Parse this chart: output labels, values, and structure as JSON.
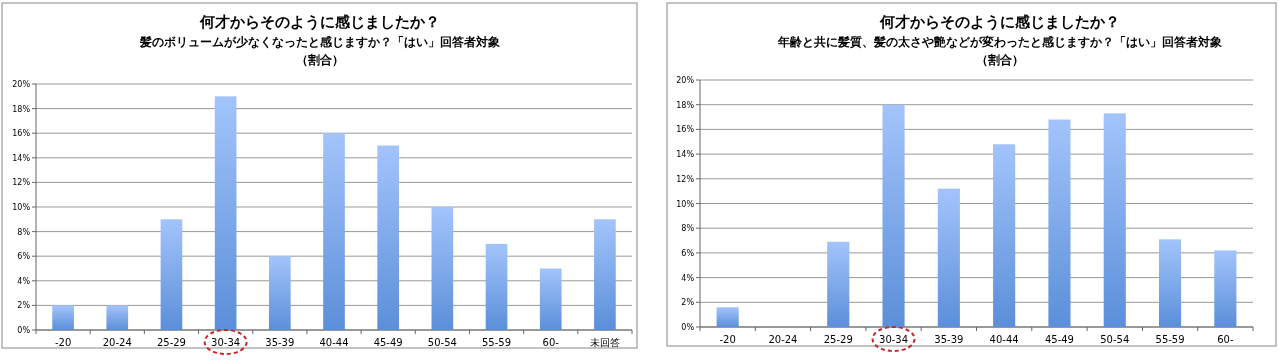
{
  "chart_data": [
    {
      "type": "bar",
      "title": "何才からそのように感じましたか？",
      "subtitle": "髪のボリュームが少なくなったと感じますか？「はい」回答者対象",
      "annotations": [
        "（割合）"
      ],
      "categories": [
        "-20",
        "20-24",
        "25-29",
        "30-34",
        "35-39",
        "40-44",
        "45-49",
        "50-54",
        "55-59",
        "60-",
        "未回答"
      ],
      "values": [
        2,
        2,
        9,
        19,
        6,
        16,
        15,
        10,
        7,
        5,
        9
      ],
      "color": "#5b8fd9",
      "ylim": [
        0,
        20
      ],
      "yticks": [
        {
          "value": 0,
          "label": "0%"
        },
        {
          "value": 2,
          "label": "2%"
        },
        {
          "value": 4,
          "label": "4%"
        },
        {
          "value": 6,
          "label": "6%"
        },
        {
          "value": 8,
          "label": "8%"
        },
        {
          "value": 10,
          "label": "10%"
        },
        {
          "value": 12,
          "label": "12%"
        },
        {
          "value": 14,
          "label": "14%"
        },
        {
          "value": 16,
          "label": "16%"
        },
        {
          "value": 18,
          "label": "18%"
        },
        {
          "value": 20,
          "label": "20%"
        }
      ],
      "grid": "y"
    },
    {
      "type": "bar",
      "title": "何才からそのように感じましたか？",
      "subtitle": "年齢と共に髪質、髪の太さや艶などが変わったと感じますか？「はい」回答者対象",
      "annotations": [
        "（割合）"
      ],
      "categories": [
        "-20",
        "20-24",
        "25-29",
        "30-34",
        "35-39",
        "40-44",
        "45-49",
        "50-54",
        "55-59",
        "60-"
      ],
      "values": [
        1.6,
        0,
        6.9,
        18,
        11.2,
        14.8,
        16.8,
        17.3,
        7.1,
        6.2
      ],
      "color": "#5b8fd9",
      "ylim": [
        0,
        20
      ],
      "yticks": [
        {
          "value": 0,
          "label": "0%"
        },
        {
          "value": 2,
          "label": "2%"
        },
        {
          "value": 4,
          "label": "4%"
        },
        {
          "value": 6,
          "label": "6%"
        },
        {
          "value": 8,
          "label": "8%"
        },
        {
          "value": 10,
          "label": "10%"
        },
        {
          "value": 12,
          "label": "12%"
        },
        {
          "value": 14,
          "label": "14%"
        },
        {
          "value": 16,
          "label": "16%"
        },
        {
          "value": 18,
          "label": "18%"
        },
        {
          "value": 20,
          "label": "20%"
        }
      ],
      "grid": "y"
    }
  ]
}
